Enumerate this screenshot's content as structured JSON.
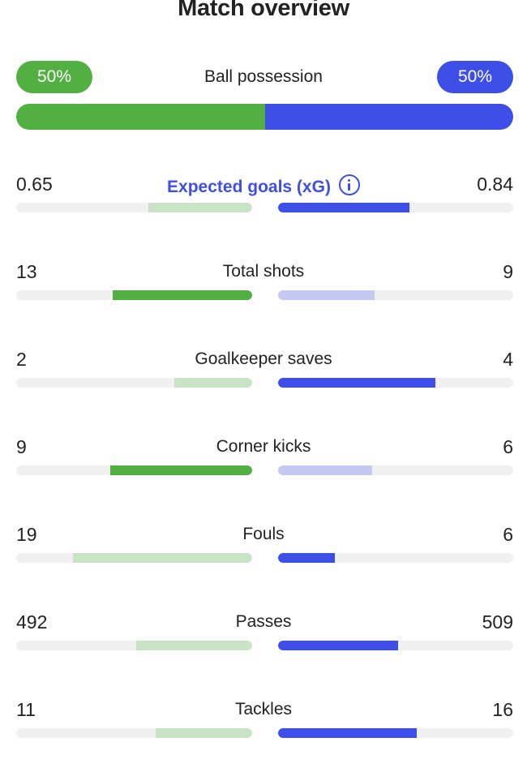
{
  "title": "Match overview",
  "colors": {
    "home": "#52b043",
    "home_light": "#c8e4c5",
    "away": "#3e4fe8",
    "away_light": "#c5c9f1",
    "track": "#f0f0f0"
  },
  "possession": {
    "label": "Ball possession",
    "home": "50%",
    "away": "50%",
    "home_fraction": 0.5
  },
  "stats": [
    {
      "label": "Expected goals (xG)",
      "home": "0.65",
      "away": "0.84",
      "home_fraction": 0.44,
      "away_fraction": 0.56,
      "leader": "away",
      "accent": true,
      "icon": "info-icon"
    },
    {
      "label": "Total shots",
      "home": "13",
      "away": "9",
      "home_fraction": 0.59,
      "away_fraction": 0.41,
      "leader": "home"
    },
    {
      "label": "Goalkeeper saves",
      "home": "2",
      "away": "4",
      "home_fraction": 0.33,
      "away_fraction": 0.67,
      "leader": "away"
    },
    {
      "label": "Corner kicks",
      "home": "9",
      "away": "6",
      "home_fraction": 0.6,
      "away_fraction": 0.4,
      "leader": "home"
    },
    {
      "label": "Fouls",
      "home": "19",
      "away": "6",
      "home_fraction": 0.76,
      "away_fraction": 0.24,
      "leader": "away"
    },
    {
      "label": "Passes",
      "home": "492",
      "away": "509",
      "home_fraction": 0.49,
      "away_fraction": 0.51,
      "leader": "away"
    },
    {
      "label": "Tackles",
      "home": "11",
      "away": "16",
      "home_fraction": 0.41,
      "away_fraction": 0.59,
      "leader": "away"
    }
  ]
}
